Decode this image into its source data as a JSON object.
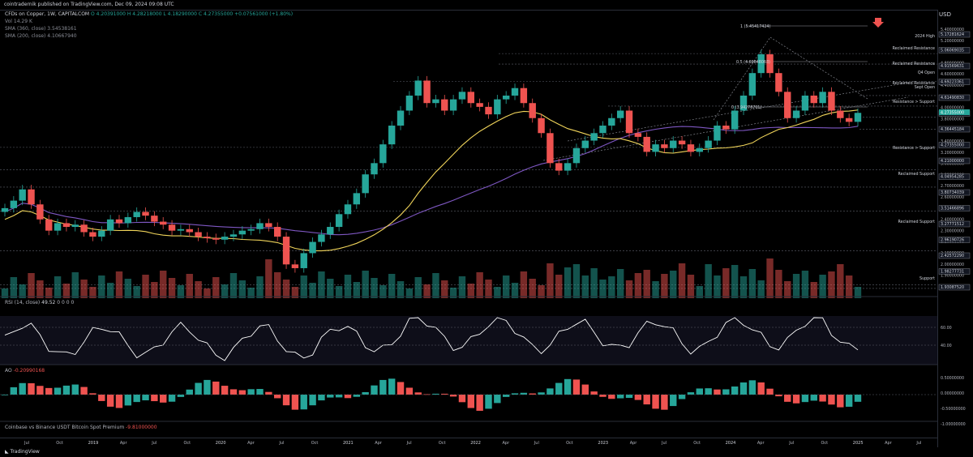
{
  "topbar": {
    "text": "cointradernik published on TradingView.com, Dec 09, 2024 09:08 UTC"
  },
  "legend": {
    "symbol": "CFDs on Copper, 1W, CAPITALCOM",
    "ohlc": "O 4.20391000  H 4.28218000  L 4.18290000  C 4.27355000  +0.07561000 (+1.80%)",
    "vol": "Vol  14.29 K",
    "sma360": "SMA (360, close)  3.54538161",
    "sma200": "SMA (200, close)  4.10667940"
  },
  "rsi_legend": {
    "label": "RSI (14, close)",
    "value": "49.52",
    "rest": "0  0  0  0"
  },
  "ao_legend": {
    "label": "AO",
    "value": "-0.20990168"
  },
  "premium_legend": {
    "label": "Coinbase vs Binance USDT Bitcoin Spot Premium",
    "value": "-9.81000000"
  },
  "price_axis": {
    "currency": "USD",
    "labels": [
      "5.40000000",
      "5.20000000",
      "5.00000000",
      "4.80000000",
      "4.60000000",
      "4.40000000",
      "4.20000000",
      "4.00000000",
      "3.80000000",
      "3.60000000",
      "3.40000000",
      "3.20000000",
      "3.00000000",
      "2.80000000",
      "2.70000000",
      "2.60000000",
      "2.50000000",
      "2.40000000",
      "2.30000000",
      "2.20000000",
      "2.10000000",
      "2.00000000",
      "1.90000000",
      "1.80000000"
    ],
    "boxed": [
      "5.17281624",
      "5.06069035",
      "4.91569631",
      "4.69223361",
      "4.61490830",
      "4.50000000",
      "4.36445184",
      "4.27355000",
      "4.21000000",
      "4.04954285",
      "3.80734039",
      "3.51466896",
      "3.27771512",
      "2.96190726",
      "2.42572290",
      "1.98277731",
      "1.93087520"
    ]
  },
  "rsi_axis": [
    "60.00",
    "40.00"
  ],
  "ao_axis": [
    "0.50000000",
    "0.00000000",
    "-0.50000000",
    "-1.00000000"
  ],
  "time_axis": [
    "Jul",
    "Oct",
    "2019",
    "Apr",
    "Jul",
    "Oct",
    "2020",
    "Apr",
    "Jul",
    "Oct",
    "2021",
    "Apr",
    "Jul",
    "Oct",
    "2022",
    "Apr",
    "Jul",
    "Oct",
    "2023",
    "Apr",
    "Jul",
    "Oct",
    "2024",
    "Apr",
    "Jul",
    "Oct",
    "2025",
    "Apr",
    "Jul"
  ],
  "annotations": {
    "fib1": "1 (5.45417424)",
    "fib05": "0.5 (4.69848063)",
    "fib0": "0 (3.94278701)",
    "high2024": "2024 High",
    "rr1": "Reclaimed Resistance",
    "rr2": "Reclaimed Resistance",
    "q4open": "Q4 Open",
    "rr3": "Reclaimed Resistance",
    "septopen": "Sept Open",
    "rs1": "Resistance > Support",
    "rs2": "Resistance > Support",
    "rsupport1": "Reclaimed Support",
    "rsupport2": "Reclaimed Support",
    "support": "Support"
  },
  "colors": {
    "up": "#26a69a",
    "down": "#ef5350",
    "sma200": "#f0d45a",
    "sma360": "#7e57c2",
    "rsi": "#ffffff",
    "bg": "#000000",
    "arrow": "#ef5350"
  },
  "footer": {
    "brand": "TradingView"
  },
  "chart_data": {
    "type": "candlestick",
    "title": "CFDs on Copper, 1W, CAPITALCOM",
    "ylabel": "USD",
    "ylim": [
      1.8,
      5.45
    ],
    "x_range": [
      "2018-06",
      "2025-08"
    ],
    "close_weekly_approx": [
      3.0,
      3.1,
      3.25,
      3.05,
      2.85,
      2.7,
      2.8,
      2.75,
      2.78,
      2.68,
      2.62,
      2.7,
      2.85,
      2.8,
      2.88,
      2.95,
      2.9,
      2.82,
      2.78,
      2.7,
      2.72,
      2.68,
      2.62,
      2.6,
      2.58,
      2.62,
      2.65,
      2.7,
      2.72,
      2.8,
      2.75,
      2.62,
      2.25,
      2.2,
      2.4,
      2.55,
      2.65,
      2.75,
      2.92,
      3.05,
      3.2,
      3.45,
      3.6,
      3.85,
      4.1,
      4.3,
      4.5,
      4.7,
      4.4,
      4.45,
      4.3,
      4.45,
      4.55,
      4.4,
      4.35,
      4.25,
      4.45,
      4.5,
      4.6,
      4.4,
      4.2,
      4.0,
      3.6,
      3.5,
      3.6,
      3.8,
      3.9,
      4.0,
      4.1,
      4.2,
      4.3,
      4.0,
      3.95,
      3.75,
      3.85,
      3.8,
      3.9,
      3.85,
      3.75,
      3.8,
      3.9,
      4.1,
      4.05,
      4.3,
      4.5,
      4.8,
      5.05,
      4.8,
      4.55,
      4.2,
      4.3,
      4.5,
      4.4,
      4.55,
      4.3,
      4.2,
      4.15,
      4.27
    ]
  }
}
